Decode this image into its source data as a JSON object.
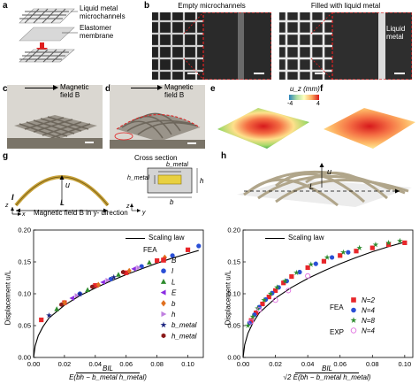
{
  "panel_labels": [
    "a",
    "b",
    "c",
    "d",
    "e",
    "f",
    "g",
    "h"
  ],
  "panel_a": {
    "label_microchannels": "Liquid metal microchannels",
    "label_membrane": "Elastomer membrane"
  },
  "panel_b": {
    "title_empty": "Empty microchannels",
    "title_filled": "Filled with liquid metal",
    "label_liquid_metal": "Liquid metal"
  },
  "panel_cd": {
    "field_label": "Magnetic field B"
  },
  "panel_ef": {
    "colorbar_label": "u_z (mm)",
    "colorbar_min": "-4",
    "colorbar_max": "4"
  },
  "panel_g_schematic": {
    "label_I": "I",
    "label_u": "u",
    "label_L": "L",
    "label_z": "z",
    "label_x": "x",
    "cross_section_title": "Cross section",
    "label_b_metal": "b_metal",
    "label_h_metal": "h_metal",
    "label_b": "b",
    "label_h": "h",
    "label_y": "y",
    "label_z2": "z",
    "field_direction": "Magnetic field B in y- direction"
  },
  "panel_h_schematic": {
    "label_u": "u",
    "label_L": "L"
  },
  "chart_left": {
    "ylabel": "Displacement u/L",
    "xlabel_num": "BIL",
    "xlabel_den": "E(bh − b_metal h_metal)",
    "legend_scaling": "Scaling law",
    "legend_fea": "FEA",
    "legend_items": [
      "B",
      "I",
      "L",
      "E",
      "b",
      "h",
      "b_metal",
      "h_metal"
    ]
  },
  "chart_right": {
    "ylabel": "Displacement u/L",
    "xlabel_num": "BIL",
    "xlabel_den": "√2 E(bh − b_metal h_metal)",
    "legend_scaling": "Scaling law",
    "legend_fea": "FEA",
    "legend_exp": "EXP",
    "legend_items": [
      "N=2",
      "N=4",
      "N=8",
      "N=4"
    ]
  },
  "chart_data": [
    {
      "type": "scatter",
      "xlim": [
        0,
        0.11
      ],
      "ylim": [
        0,
        0.2
      ],
      "xticks": [
        "0.00",
        "0.02",
        "0.04",
        "0.06",
        "0.08",
        "0.10"
      ],
      "yticks": [
        "0.00",
        "0.05",
        "0.10",
        "0.15",
        "0.20"
      ],
      "scaling_law": {
        "x": [
          0,
          0.001,
          0.003,
          0.006,
          0.01,
          0.02,
          0.03,
          0.04,
          0.05,
          0.06,
          0.07,
          0.08,
          0.09,
          0.1,
          0.107
        ],
        "y": [
          0,
          0.018,
          0.034,
          0.048,
          0.062,
          0.082,
          0.097,
          0.109,
          0.12,
          0.13,
          0.139,
          0.148,
          0.156,
          0.163,
          0.168
        ]
      },
      "series": [
        {
          "name": "B",
          "color": "#e8262a",
          "marker": "square",
          "x": [
            0.005,
            0.02,
            0.04,
            0.06,
            0.08,
            0.1
          ],
          "y": [
            0.059,
            0.086,
            0.113,
            0.133,
            0.152,
            0.169
          ]
        },
        {
          "name": "I",
          "color": "#2a4fd6",
          "marker": "circle",
          "x": [
            0.03,
            0.05,
            0.07,
            0.09,
            0.107
          ],
          "y": [
            0.1,
            0.123,
            0.143,
            0.16,
            0.175
          ]
        },
        {
          "name": "L",
          "color": "#2e8b2e",
          "marker": "triangle",
          "x": [
            0.015,
            0.035,
            0.055,
            0.075
          ],
          "y": [
            0.076,
            0.106,
            0.13,
            0.149
          ]
        },
        {
          "name": "E",
          "color": "#8a2be2",
          "marker": "triangle-left",
          "x": [
            0.025,
            0.045,
            0.065
          ],
          "y": [
            0.093,
            0.118,
            0.139
          ]
        },
        {
          "name": "b",
          "color": "#e07020",
          "marker": "diamond",
          "x": [
            0.02,
            0.042,
            0.062,
            0.085
          ],
          "y": [
            0.086,
            0.114,
            0.136,
            0.157
          ]
        },
        {
          "name": "h",
          "color": "#c080e0",
          "marker": "triangle-right",
          "x": [
            0.028,
            0.048,
            0.068
          ],
          "y": [
            0.097,
            0.121,
            0.141
          ]
        },
        {
          "name": "b_metal",
          "color": "#1a237e",
          "marker": "star",
          "x": [
            0.01,
            0.03,
            0.052
          ],
          "y": [
            0.066,
            0.099,
            0.126
          ]
        },
        {
          "name": "h_metal",
          "color": "#8b1a1a",
          "marker": "hexagon",
          "x": [
            0.018,
            0.038,
            0.058
          ],
          "y": [
            0.083,
            0.111,
            0.134
          ]
        }
      ]
    },
    {
      "type": "scatter",
      "xlim": [
        0,
        0.105
      ],
      "ylim": [
        0,
        0.2
      ],
      "xticks": [
        "0.00",
        "0.02",
        "0.04",
        "0.06",
        "0.08",
        "0.10"
      ],
      "yticks": [
        "0.00",
        "0.05",
        "0.10",
        "0.15",
        "0.20"
      ],
      "scaling_law": {
        "x": [
          0,
          0.001,
          0.003,
          0.006,
          0.01,
          0.02,
          0.03,
          0.04,
          0.05,
          0.06,
          0.07,
          0.08,
          0.09,
          0.1
        ],
        "y": [
          0,
          0.02,
          0.038,
          0.054,
          0.07,
          0.093,
          0.11,
          0.124,
          0.136,
          0.147,
          0.157,
          0.166,
          0.174,
          0.181
        ]
      },
      "series": [
        {
          "name": "N=2",
          "group": "FEA",
          "color": "#e8262a",
          "marker": "square",
          "x": [
            0.005,
            0.008,
            0.012,
            0.016,
            0.02,
            0.025,
            0.03,
            0.04,
            0.05,
            0.06,
            0.07,
            0.08,
            0.09,
            0.1
          ],
          "y": [
            0.058,
            0.07,
            0.084,
            0.095,
            0.105,
            0.117,
            0.127,
            0.141,
            0.151,
            0.16,
            0.167,
            0.172,
            0.177,
            0.18
          ]
        },
        {
          "name": "N=4",
          "group": "FEA",
          "color": "#2a4fd6",
          "marker": "circle",
          "x": [
            0.004,
            0.007,
            0.01,
            0.014,
            0.018,
            0.022,
            0.027,
            0.035,
            0.045,
            0.055,
            0.065
          ],
          "y": [
            0.054,
            0.067,
            0.079,
            0.091,
            0.101,
            0.11,
            0.12,
            0.134,
            0.147,
            0.157,
            0.165
          ]
        },
        {
          "name": "N=8",
          "group": "FEA",
          "color": "#2e8b2e",
          "marker": "star",
          "x": [
            0.003,
            0.006,
            0.009,
            0.013,
            0.017,
            0.021,
            0.026,
            0.033,
            0.042,
            0.052,
            0.062,
            0.072,
            0.082,
            0.09,
            0.097
          ],
          "y": [
            0.05,
            0.064,
            0.077,
            0.09,
            0.1,
            0.11,
            0.12,
            0.133,
            0.146,
            0.157,
            0.165,
            0.172,
            0.177,
            0.18,
            0.183
          ]
        },
        {
          "name": "N=4",
          "group": "EXP",
          "color": "#e070e0",
          "marker": "open-circle",
          "x": [
            0.005,
            0.01,
            0.02,
            0.028,
            0.04
          ],
          "y": [
            0.056,
            0.075,
            0.09,
            0.105,
            0.128
          ]
        }
      ]
    }
  ]
}
